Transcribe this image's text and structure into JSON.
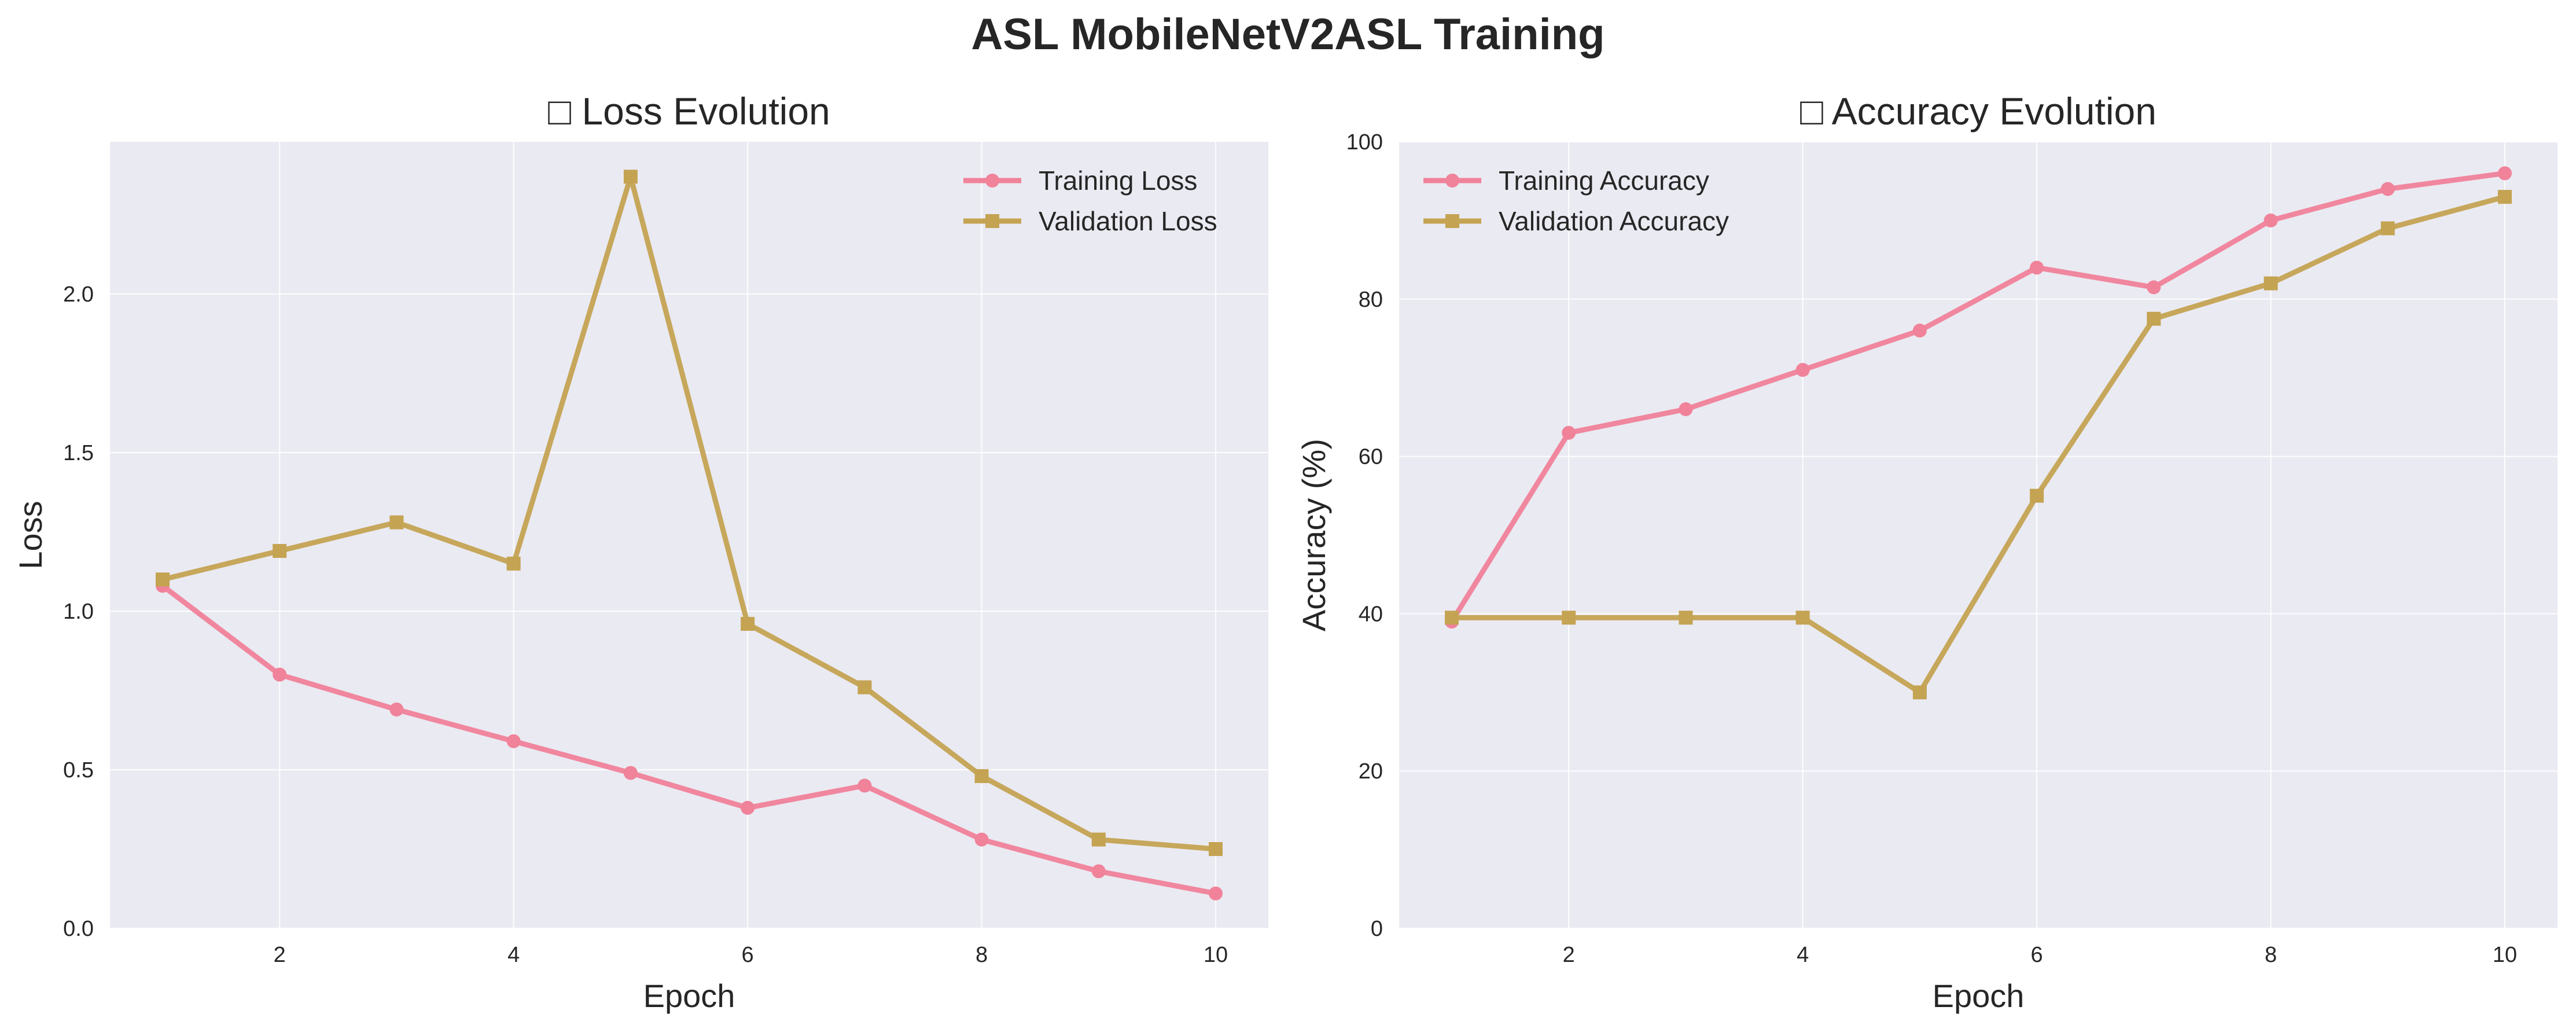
{
  "figure": {
    "suptitle": "ASL MobileNetV2ASL Training"
  },
  "style": {
    "plot_bg": "#eaeaf2",
    "grid_color": "#ffffff",
    "training_color": "#f0829a",
    "validation_color": "#c4a352"
  },
  "chart_data": [
    {
      "type": "line",
      "title": "□ Loss Evolution",
      "xlabel": "Epoch",
      "ylabel": "Loss",
      "xlim": [
        0.55,
        10.45
      ],
      "ylim": [
        0.0,
        2.48
      ],
      "xticks": [
        2,
        4,
        6,
        8,
        10
      ],
      "xtick_labels": [
        "2",
        "4",
        "6",
        "8",
        "10"
      ],
      "yticks": [
        0.0,
        0.5,
        1.0,
        1.5,
        2.0
      ],
      "ytick_labels": [
        "0.0",
        "0.5",
        "1.0",
        "1.5",
        "2.0"
      ],
      "grid": true,
      "legend_position": "top-right",
      "x": [
        1,
        2,
        3,
        4,
        5,
        6,
        7,
        8,
        9,
        10
      ],
      "series": [
        {
          "name": "Training Loss",
          "marker": "circle",
          "color": "#f0829a",
          "values": [
            1.08,
            0.8,
            0.69,
            0.59,
            0.49,
            0.38,
            0.45,
            0.28,
            0.18,
            0.11
          ]
        },
        {
          "name": "Validation Loss",
          "marker": "square",
          "color": "#c4a352",
          "values": [
            1.1,
            1.19,
            1.28,
            1.15,
            2.37,
            0.96,
            0.76,
            0.48,
            0.28,
            0.25
          ]
        }
      ]
    },
    {
      "type": "line",
      "title": "□ Accuracy Evolution",
      "xlabel": "Epoch",
      "ylabel": "Accuracy (%)",
      "xlim": [
        0.55,
        10.45
      ],
      "ylim": [
        0,
        100
      ],
      "xticks": [
        2,
        4,
        6,
        8,
        10
      ],
      "xtick_labels": [
        "2",
        "4",
        "6",
        "8",
        "10"
      ],
      "yticks": [
        0,
        20,
        40,
        60,
        80,
        100
      ],
      "ytick_labels": [
        "0",
        "20",
        "40",
        "60",
        "80",
        "100"
      ],
      "grid": true,
      "legend_position": "top-left",
      "x": [
        1,
        2,
        3,
        4,
        5,
        6,
        7,
        8,
        9,
        10
      ],
      "series": [
        {
          "name": "Training Accuracy",
          "marker": "circle",
          "color": "#f0829a",
          "values": [
            39.0,
            63.0,
            66.0,
            71.0,
            76.0,
            84.0,
            81.5,
            90.0,
            94.0,
            96.0
          ]
        },
        {
          "name": "Validation Accuracy",
          "marker": "square",
          "color": "#c4a352",
          "values": [
            39.5,
            39.5,
            39.5,
            39.5,
            30.0,
            55.0,
            77.5,
            82.0,
            89.0,
            93.0
          ]
        }
      ]
    }
  ]
}
